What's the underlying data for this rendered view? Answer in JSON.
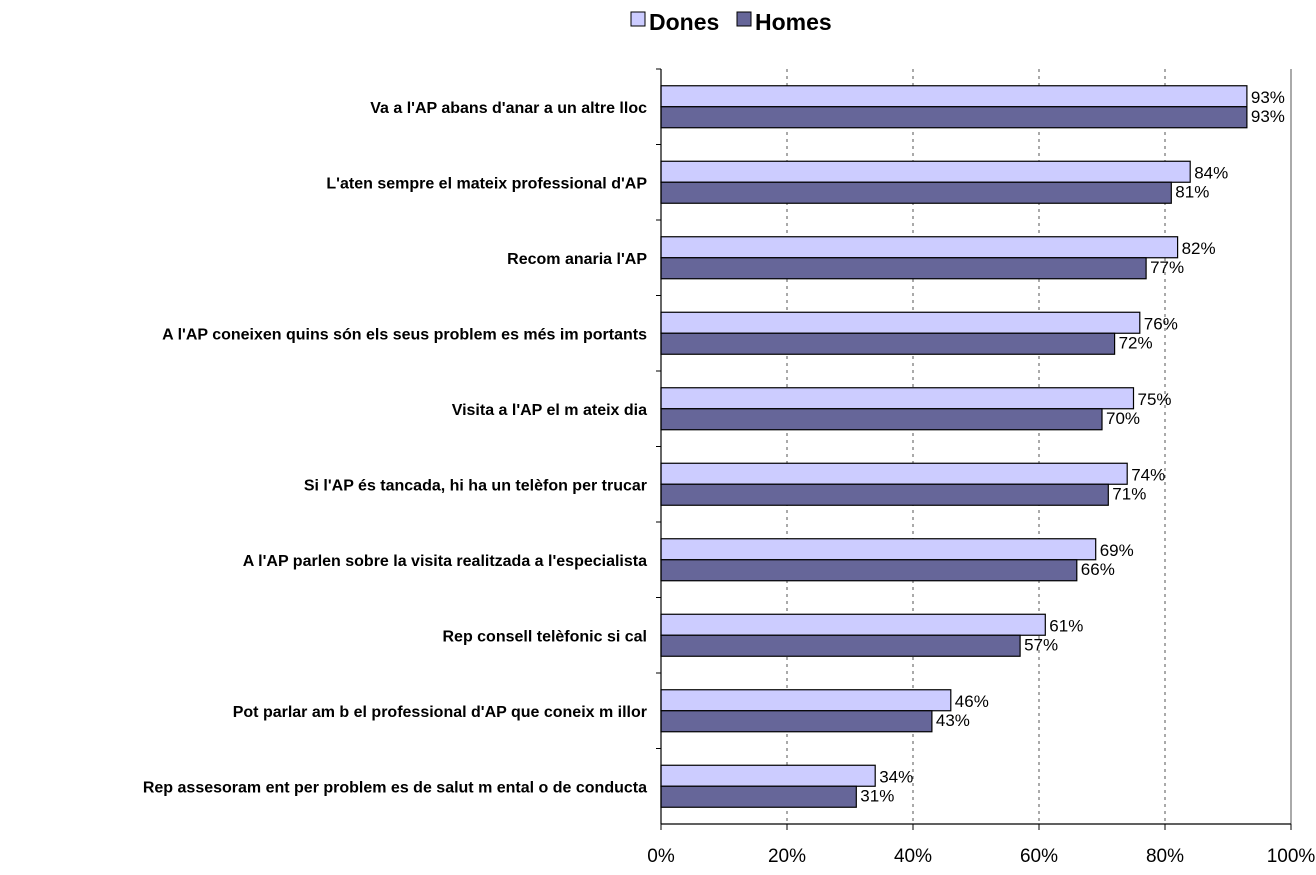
{
  "chart_data": {
    "type": "bar",
    "orientation": "horizontal",
    "categories": [
      "Va a l'AP abans d'anar a un altre lloc",
      "L'aten sempre el mateix professional d'AP",
      "Recom anaria l'AP",
      "A l'AP coneixen quins són els seus problem es més im portants",
      "Visita a l'AP el m ateix dia",
      "Si l'AP és tancada, hi ha un telèfon per trucar",
      "A l'AP parlen sobre la visita realitzada a l'especialista",
      "Rep consell telèfonic si cal",
      "Pot parlar am b el professional d'AP que coneix m illor",
      "Rep assesoram ent per problem es de salut m ental o de conducta"
    ],
    "series": [
      {
        "name": "Dones",
        "color": "#ccccff",
        "values": [
          93,
          84,
          82,
          76,
          75,
          74,
          69,
          61,
          46,
          34
        ],
        "labels": [
          "93%",
          "84%",
          "82%",
          "76%",
          "75%",
          "74%",
          "69%",
          "61%",
          "46%",
          "34%"
        ]
      },
      {
        "name": "Homes",
        "color": "#666699",
        "values": [
          93,
          81,
          77,
          72,
          70,
          71,
          66,
          57,
          43,
          31
        ],
        "labels": [
          "93%",
          "81%",
          "77%",
          "72%",
          "70%",
          "71%",
          "66%",
          "57%",
          "43%",
          "31%"
        ]
      }
    ],
    "xlim": [
      0,
      100
    ],
    "xticks": [
      "0%",
      "20%",
      "40%",
      "60%",
      "80%",
      "100%"
    ],
    "grid": "vertical-dashed",
    "legend_position": "top-center",
    "title": "",
    "xlabel": "",
    "ylabel": ""
  }
}
